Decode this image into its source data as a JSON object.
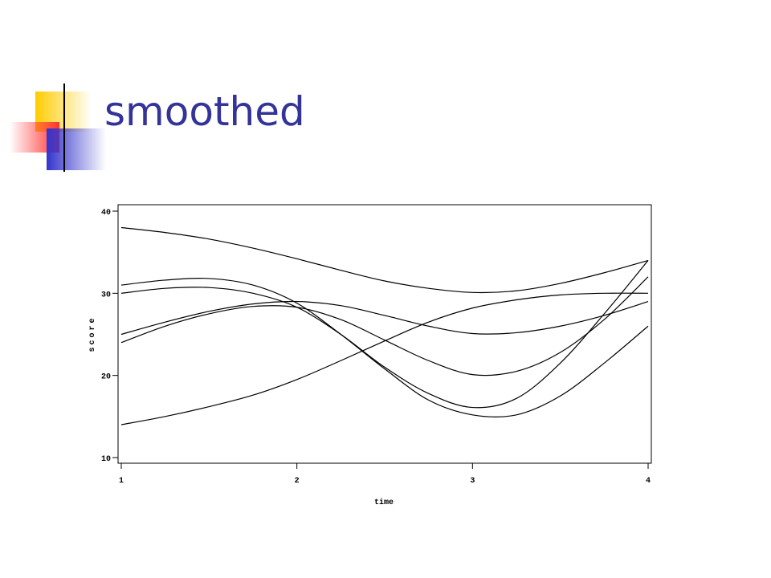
{
  "header": {
    "title": "smoothed"
  },
  "chart_data": {
    "type": "line",
    "x_label": "time",
    "y_label": "score",
    "x": [
      1,
      1.25,
      1.5,
      1.75,
      2,
      2.25,
      2.5,
      2.75,
      3,
      3.25,
      3.5,
      3.75,
      4
    ],
    "xlim": [
      1,
      4
    ],
    "xticks": [
      1,
      2,
      3,
      4
    ],
    "ylim": [
      10,
      40
    ],
    "yticks": [
      10,
      20,
      30,
      40
    ],
    "grid": false,
    "series": [
      {
        "color": "#000000",
        "values": [
          38,
          37.4,
          36.6,
          35.5,
          34.2,
          32.8,
          31.5,
          30.6,
          30.1,
          30.3,
          31.2,
          32.5,
          34
        ]
      },
      {
        "color": "#000000",
        "values": [
          14,
          15,
          16.2,
          17.6,
          19.5,
          21.8,
          24.2,
          26.5,
          28.2,
          29.2,
          29.8,
          30,
          30
        ]
      },
      {
        "color": "#000000",
        "values": [
          31,
          31.6,
          31.8,
          31,
          28.8,
          25,
          20.8,
          17,
          15.2,
          15.2,
          17.5,
          21.5,
          26
        ]
      },
      {
        "color": "#000000",
        "values": [
          30,
          30.6,
          30.7,
          30,
          28.3,
          25,
          21,
          17.8,
          16.1,
          17.2,
          21.5,
          27.5,
          34
        ]
      },
      {
        "color": "#000000",
        "values": [
          25,
          26.5,
          27.8,
          28.7,
          29,
          28.5,
          27.3,
          26,
          25.1,
          25.2,
          26,
          27.3,
          29
        ]
      },
      {
        "color": "#000000",
        "values": [
          24,
          26,
          27.5,
          28.4,
          28.3,
          26.8,
          24.3,
          21.8,
          20.1,
          20.5,
          22.8,
          26.8,
          32
        ]
      }
    ]
  }
}
